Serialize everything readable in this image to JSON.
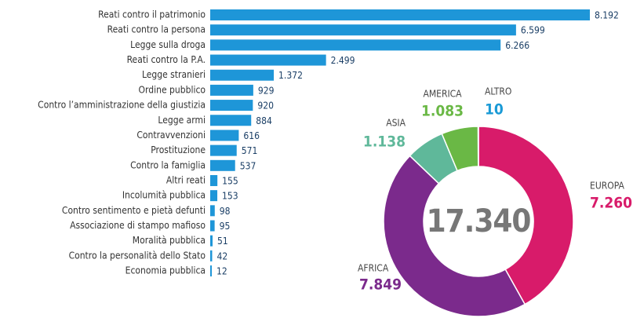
{
  "chart_data": [
    {
      "type": "bar",
      "horizontal": true,
      "color": "#1e96d8",
      "categories": [
        "Reati contro il patrimonio",
        "Reati contro la persona",
        "Legge sulla droga",
        "Reati contro la P.A.",
        "Legge stranieri",
        "Ordine pubblico",
        "Contro l’amministrazione della giustizia",
        "Legge armi",
        "Contravvenzioni",
        "Prostituzione",
        "Contro la famiglia",
        "Altri reati",
        "Incolumità pubblica",
        "Contro sentimento e pietà defunti",
        "Associazione di stampo mafioso",
        "Moralità pubblica",
        "Contro la personalità dello Stato",
        "Economia pubblica"
      ],
      "values": [
        8192,
        6599,
        6266,
        2499,
        1372,
        929,
        920,
        884,
        616,
        571,
        537,
        155,
        153,
        98,
        95,
        51,
        42,
        12
      ],
      "value_labels": [
        "8.192",
        "6.599",
        "6.266",
        "2.499",
        "1.372",
        "929",
        "920",
        "884",
        "616",
        "571",
        "537",
        "155",
        "153",
        "98",
        "95",
        "51",
        "42",
        "12"
      ]
    },
    {
      "type": "donut",
      "center_text": "17.340",
      "categories": [
        "EUROPA",
        "AFRICA",
        "ASIA",
        "AMERICA",
        "ALTRO"
      ],
      "values": [
        7260,
        7849,
        1138,
        1083,
        10
      ],
      "value_labels": [
        "7.260",
        "7.849",
        "1.138",
        "1.083",
        "10"
      ],
      "colors": [
        "#d81b6a",
        "#7b2a8c",
        "#5fb89a",
        "#6ab845",
        "#1a9ad6"
      ]
    }
  ]
}
